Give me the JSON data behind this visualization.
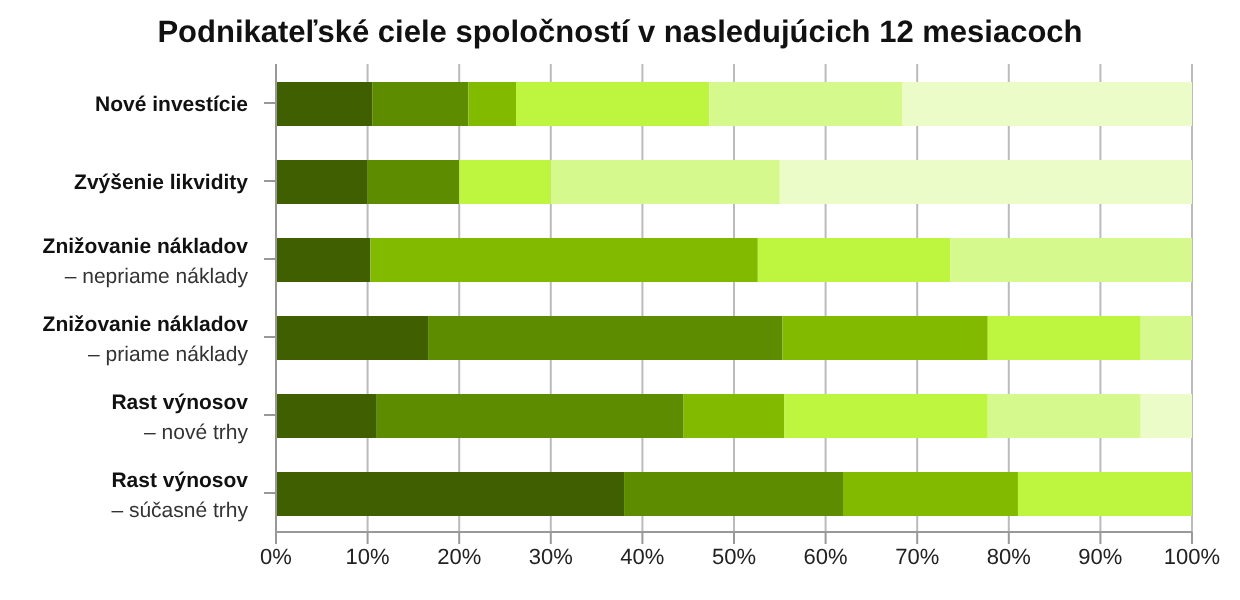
{
  "chart_data": {
    "type": "bar",
    "orientation": "horizontal",
    "stacked": true,
    "title": "Podnikateľské ciele spoločností v nasledujúcich 12 mesiacoch",
    "categories": [
      "Nové investície",
      "Zvýšenie likvidity",
      "Znižovanie nákladov\n– nepriame náklady",
      "Znižovanie nákladov\n– priame náklady",
      "Rast výnosov\n– nové trhy",
      "Rast výnosov\n– súčasné trhy"
    ],
    "series": [
      {
        "color": "#3f5f00",
        "values": [
          10.5,
          10,
          10.3,
          16.6,
          11,
          38
        ]
      },
      {
        "color": "#5e8c00",
        "values": [
          10.5,
          10,
          0,
          38.7,
          33.5,
          23.9
        ]
      },
      {
        "color": "#82ba00",
        "values": [
          5.2,
          0,
          42.3,
          22.4,
          11,
          19.1
        ]
      },
      {
        "color": "#bdf53f",
        "values": [
          21.1,
          10,
          21,
          16.7,
          22.2,
          19
        ]
      },
      {
        "color": "#d5f98c",
        "values": [
          21.1,
          25,
          26.4,
          5.6,
          16.7,
          0
        ]
      },
      {
        "color": "#ebfcc9",
        "values": [
          31.6,
          45,
          0,
          0,
          5.6,
          0
        ]
      }
    ],
    "xlim": [
      0,
      100
    ],
    "xticks": [
      {
        "value": 0,
        "label": "0%"
      },
      {
        "value": 10,
        "label": "10%"
      },
      {
        "value": 20,
        "label": "20%"
      },
      {
        "value": 30,
        "label": "30%"
      },
      {
        "value": 40,
        "label": "40%"
      },
      {
        "value": 50,
        "label": "50%"
      },
      {
        "value": 60,
        "label": "60%"
      },
      {
        "value": 70,
        "label": "70%"
      },
      {
        "value": 80,
        "label": "80%"
      },
      {
        "value": 90,
        "label": "90%"
      },
      {
        "value": 100,
        "label": "100%"
      }
    ],
    "grid": "x",
    "legend": false
  }
}
